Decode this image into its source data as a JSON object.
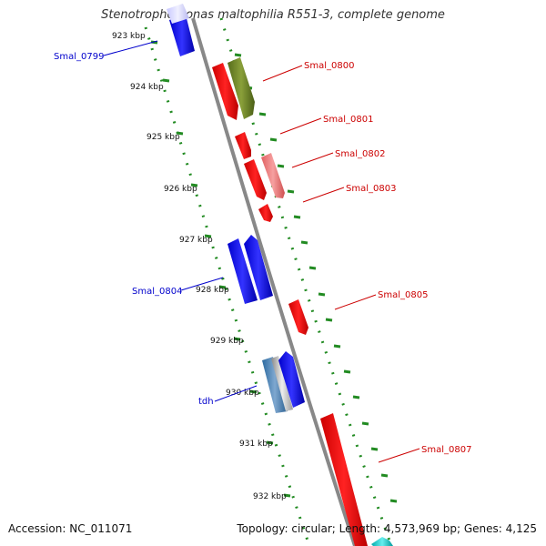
{
  "title": "Stenotrophomonas maltophilia R551-3, complete genome",
  "footer": {
    "accession": "Accession: NC_011071",
    "summary": "Topology: circular; Length: 4,573,969 bp; Genes: 4,125"
  },
  "ticks": [
    "923 kbp",
    "924 kbp",
    "925 kbp",
    "926 kbp",
    "927 kbp",
    "928 kbp",
    "929 kbp",
    "930 kbp",
    "931 kbp",
    "932 kbp"
  ],
  "colors": {
    "forward_label": "#cc0000",
    "reverse_label": "#0000cc",
    "backbone": "#888888",
    "tick_marks": "#228b22"
  },
  "gene_labels": [
    {
      "name": "Smal_0799",
      "strand": "reverse"
    },
    {
      "name": "Smal_0800",
      "strand": "forward"
    },
    {
      "name": "Smal_0801",
      "strand": "forward"
    },
    {
      "name": "Smal_0802",
      "strand": "forward"
    },
    {
      "name": "Smal_0803",
      "strand": "forward"
    },
    {
      "name": "Smal_0804",
      "strand": "reverse"
    },
    {
      "name": "Smal_0805",
      "strand": "forward"
    },
    {
      "name": "tdh",
      "strand": "reverse"
    },
    {
      "name": "Smal_0807",
      "strand": "forward"
    }
  ]
}
